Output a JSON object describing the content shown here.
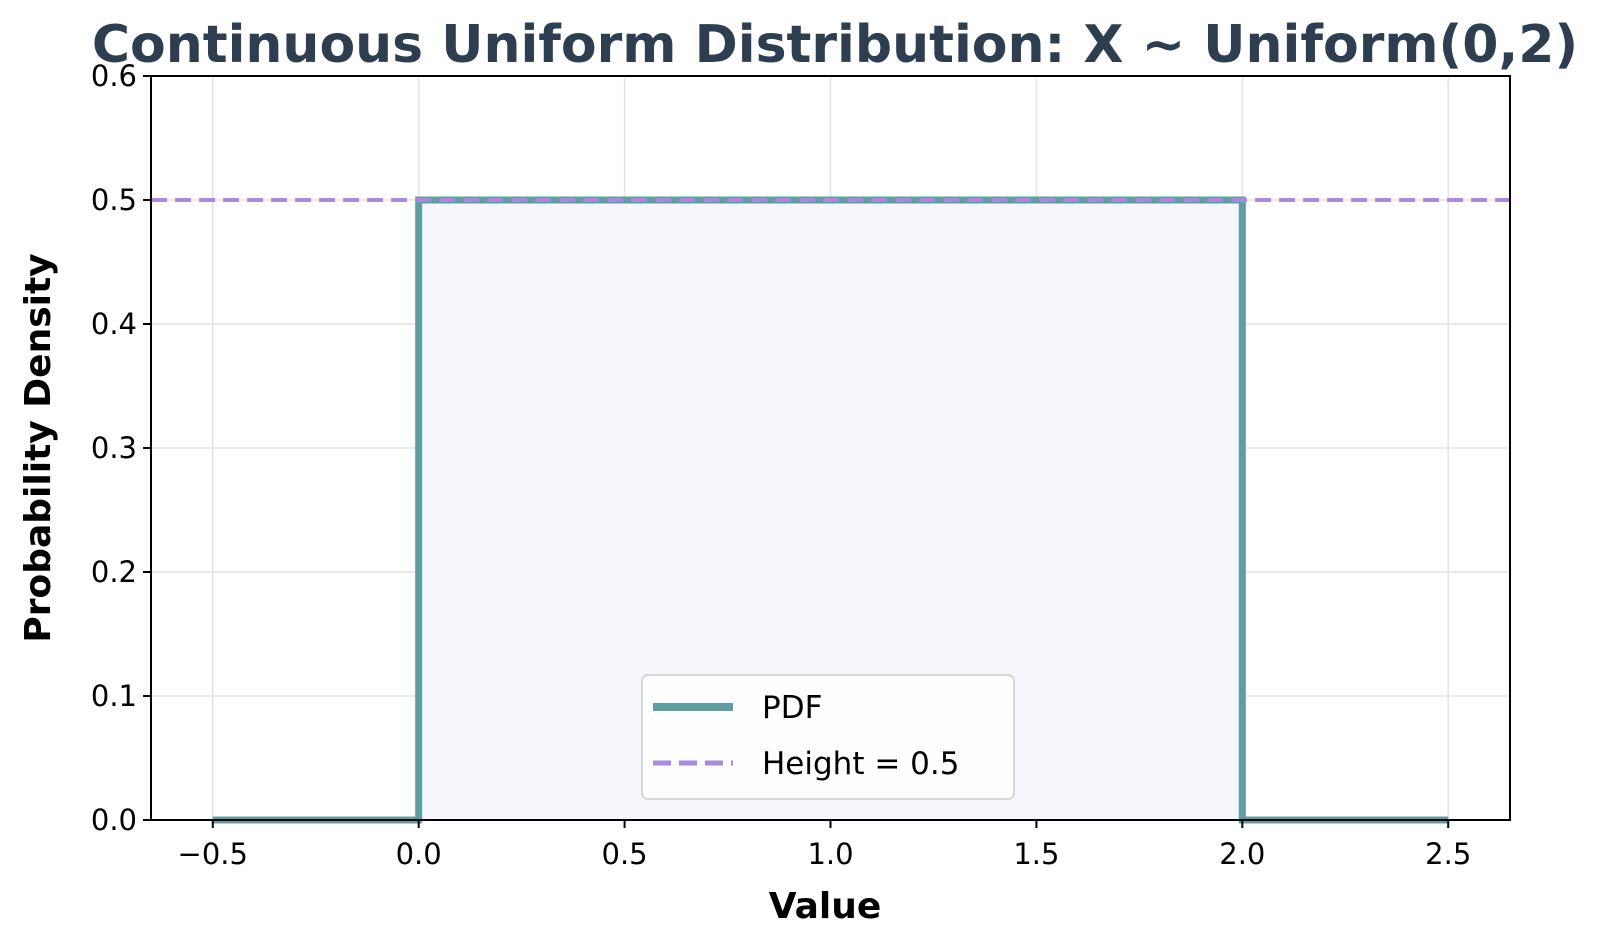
{
  "chart_data": {
    "type": "line",
    "title": "Continuous Uniform Distribution: X ~ Uniform(0,2)",
    "xlabel": "Value",
    "ylabel": "Probability Density",
    "xlim": [
      -0.65,
      2.65
    ],
    "ylim": [
      0,
      0.6
    ],
    "x_ticks": [
      -0.5,
      0.0,
      0.5,
      1.0,
      1.5,
      2.0,
      2.5
    ],
    "x_tick_labels": [
      "−0.5",
      "0.0",
      "0.5",
      "1.0",
      "1.5",
      "2.0",
      "2.5"
    ],
    "y_ticks": [
      0.0,
      0.1,
      0.2,
      0.3,
      0.4,
      0.5,
      0.6
    ],
    "y_tick_labels": [
      "0.0",
      "0.1",
      "0.2",
      "0.3",
      "0.4",
      "0.5",
      "0.6"
    ],
    "grid": true,
    "legend_position": "bottom-center",
    "series": [
      {
        "name": "PDF",
        "style": "solid",
        "color": "#5f9ea0",
        "fill": "#f5f7fc",
        "x": [
          -0.5,
          0.0,
          0.0,
          2.0,
          2.0,
          2.5
        ],
        "y": [
          0.0,
          0.0,
          0.5,
          0.5,
          0.0,
          0.0
        ]
      },
      {
        "name": "Height = 0.5",
        "style": "dashed",
        "color": "#a78bdc",
        "x": [
          -0.65,
          2.65
        ],
        "y": [
          0.5,
          0.5
        ]
      }
    ],
    "colors": {
      "title": "#2c3e50",
      "grid": "#e3e3e8",
      "axes": "#000000"
    }
  }
}
